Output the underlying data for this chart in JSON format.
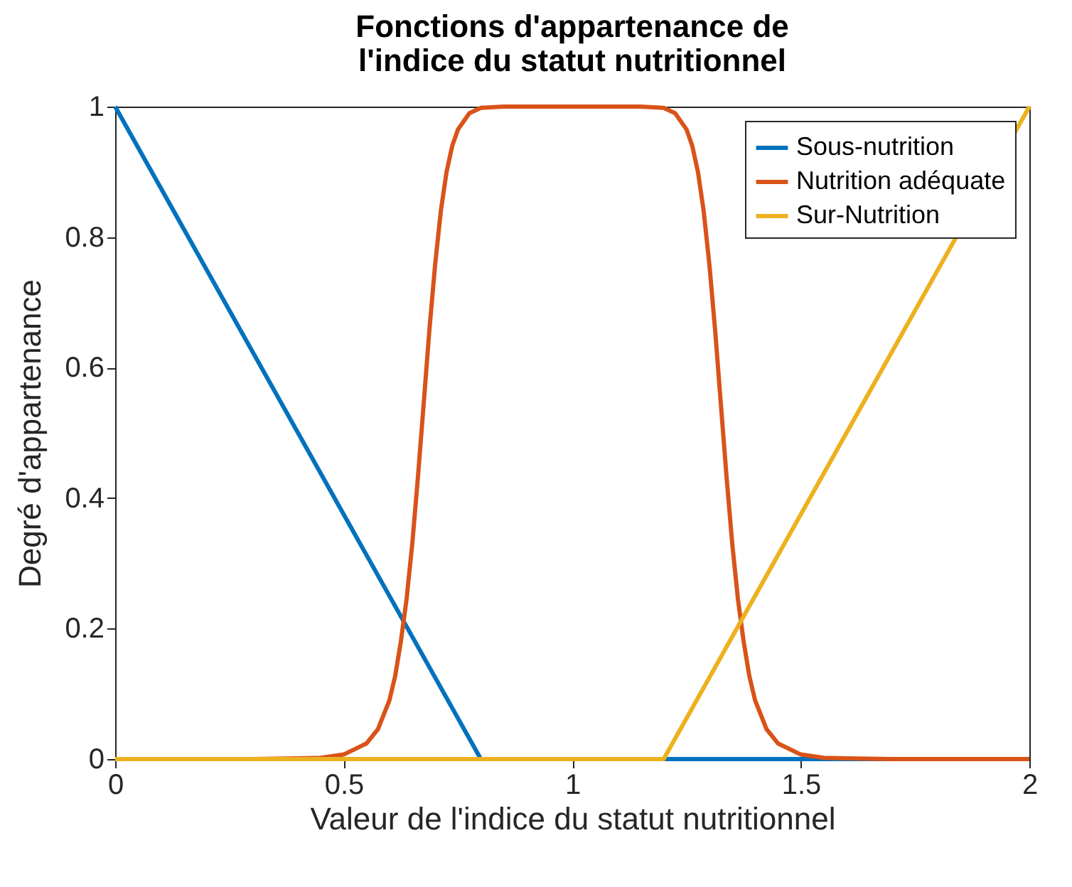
{
  "chart_data": {
    "type": "line",
    "title": "Fonctions d'appartenance de\nl'indice du statut nutritionnel",
    "xlabel": "Valeur de l'indice du statut nutritionnel",
    "ylabel": "Degré d'appartenance",
    "xlim": [
      0,
      2
    ],
    "ylim": [
      0,
      1
    ],
    "xticks": [
      0,
      0.5,
      1,
      1.5,
      2
    ],
    "yticks": [
      0,
      0.2,
      0.4,
      0.6,
      0.8,
      1
    ],
    "grid": false,
    "legend": "top right",
    "line_style": "solid",
    "marker": "none",
    "series": [
      {
        "name": "Sous-nutrition",
        "color": "#0072bd",
        "x": [
          0,
          0.8,
          2
        ],
        "values": [
          1,
          0,
          0
        ]
      },
      {
        "name": "Nutrition adéquate",
        "color": "#d95319",
        "x": [
          0,
          0.3,
          0.4,
          0.45,
          0.5,
          0.55,
          0.575,
          0.6,
          0.6125,
          0.625,
          0.6375,
          0.65,
          0.6625,
          0.675,
          0.6875,
          0.7,
          0.7125,
          0.725,
          0.7375,
          0.75,
          0.775,
          0.8,
          0.85,
          0.9,
          1,
          1.1,
          1.15,
          1.2,
          1.225,
          1.25,
          1.2625,
          1.275,
          1.2875,
          1.3,
          1.3125,
          1.325,
          1.3375,
          1.35,
          1.3625,
          1.375,
          1.3875,
          1.4,
          1.425,
          1.45,
          1.5,
          1.55,
          1.6,
          1.7,
          2
        ],
        "values": [
          0,
          0,
          0.001,
          0.002,
          0.007,
          0.024,
          0.046,
          0.09,
          0.127,
          0.18,
          0.245,
          0.33,
          0.433,
          0.545,
          0.658,
          0.758,
          0.84,
          0.9,
          0.94,
          0.965,
          0.99,
          0.998,
          1,
          1,
          1,
          1,
          1,
          0.998,
          0.99,
          0.965,
          0.94,
          0.9,
          0.84,
          0.758,
          0.658,
          0.545,
          0.433,
          0.33,
          0.245,
          0.18,
          0.127,
          0.09,
          0.046,
          0.024,
          0.007,
          0.002,
          0.001,
          0,
          0
        ]
      },
      {
        "name": "Sur-Nutrition",
        "color": "#edb120",
        "x": [
          0,
          1.2,
          2
        ],
        "values": [
          0,
          0,
          1
        ]
      }
    ]
  }
}
